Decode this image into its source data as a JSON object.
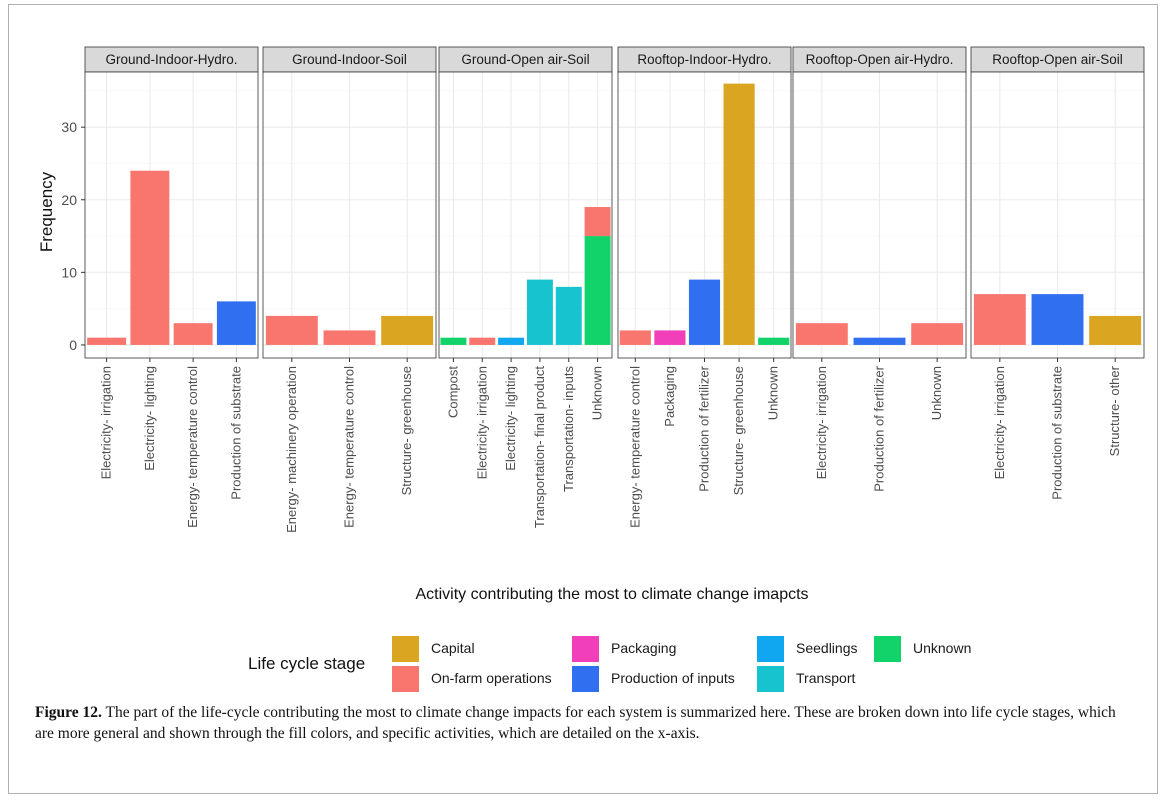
{
  "chart_data": {
    "type": "bar",
    "title": "",
    "xlabel": "Activity contributing the most to climate change imapcts",
    "ylabel": "Frequency",
    "ylim": [
      0,
      36
    ],
    "yticks": [
      0,
      10,
      20,
      30
    ],
    "grid": true,
    "legend_position": "bottom",
    "legend": {
      "title": "Life cycle stage",
      "entries": [
        {
          "name": "Capital",
          "color": "#DAA520"
        },
        {
          "name": "On-farm operations",
          "color": "#F8766D"
        },
        {
          "name": "Packaging",
          "color": "#F03FB8"
        },
        {
          "name": "Production of inputs",
          "color": "#2F6FF0"
        },
        {
          "name": "Seedlings",
          "color": "#10A6F0"
        },
        {
          "name": "Transport",
          "color": "#17C3CF"
        },
        {
          "name": "Unknown",
          "color": "#12D36A"
        }
      ]
    },
    "facets": [
      {
        "name": "Ground-Indoor-Hydro.",
        "categories": [
          {
            "label": "Electricity- irrigation",
            "segments": [
              {
                "stage": "On-farm operations",
                "value": 1
              }
            ]
          },
          {
            "label": "Electricity- lighting",
            "segments": [
              {
                "stage": "On-farm operations",
                "value": 24
              }
            ]
          },
          {
            "label": "Energy- temperature control",
            "segments": [
              {
                "stage": "On-farm operations",
                "value": 3
              }
            ]
          },
          {
            "label": "Production of substrate",
            "segments": [
              {
                "stage": "Production of inputs",
                "value": 6
              }
            ]
          }
        ]
      },
      {
        "name": "Ground-Indoor-Soil",
        "categories": [
          {
            "label": "Energy- machinery operation",
            "segments": [
              {
                "stage": "On-farm operations",
                "value": 4
              }
            ]
          },
          {
            "label": "Energy- temperature control",
            "segments": [
              {
                "stage": "On-farm operations",
                "value": 2
              }
            ]
          },
          {
            "label": "Structure- greenhouse",
            "segments": [
              {
                "stage": "Capital",
                "value": 4
              }
            ]
          }
        ]
      },
      {
        "name": "Ground-Open air-Soil",
        "categories": [
          {
            "label": "Compost",
            "segments": [
              {
                "stage": "Unknown",
                "value": 1
              }
            ]
          },
          {
            "label": "Electricity- irrigation",
            "segments": [
              {
                "stage": "On-farm operations",
                "value": 1
              }
            ]
          },
          {
            "label": "Electricity- lighting",
            "segments": [
              {
                "stage": "Seedlings",
                "value": 1
              }
            ]
          },
          {
            "label": "Transportation- final product",
            "segments": [
              {
                "stage": "Transport",
                "value": 9
              }
            ]
          },
          {
            "label": "Transportation- inputs",
            "segments": [
              {
                "stage": "Transport",
                "value": 8
              }
            ]
          },
          {
            "label": "Unknown",
            "segments": [
              {
                "stage": "Unknown",
                "value": 15
              },
              {
                "stage": "On-farm operations",
                "value": 4
              }
            ]
          }
        ]
      },
      {
        "name": "Rooftop-Indoor-Hydro.",
        "categories": [
          {
            "label": "Energy- temperature control",
            "segments": [
              {
                "stage": "On-farm operations",
                "value": 2
              }
            ]
          },
          {
            "label": "Packaging",
            "segments": [
              {
                "stage": "Packaging",
                "value": 2
              }
            ]
          },
          {
            "label": "Production of fertilizer",
            "segments": [
              {
                "stage": "Production of inputs",
                "value": 9
              }
            ]
          },
          {
            "label": "Structure- greenhouse",
            "segments": [
              {
                "stage": "Capital",
                "value": 36
              }
            ]
          },
          {
            "label": "Unknown",
            "segments": [
              {
                "stage": "Unknown",
                "value": 1
              }
            ]
          }
        ]
      },
      {
        "name": "Rooftop-Open air-Hydro.",
        "categories": [
          {
            "label": "Electricity- irrigation",
            "segments": [
              {
                "stage": "On-farm operations",
                "value": 3
              }
            ]
          },
          {
            "label": "Production of fertilizer",
            "segments": [
              {
                "stage": "Production of inputs",
                "value": 1
              }
            ]
          },
          {
            "label": "Unknown",
            "segments": [
              {
                "stage": "On-farm operations",
                "value": 3
              }
            ]
          }
        ]
      },
      {
        "name": "Rooftop-Open air-Soil",
        "categories": [
          {
            "label": "Electricity- irrigation",
            "segments": [
              {
                "stage": "On-farm operations",
                "value": 7
              }
            ]
          },
          {
            "label": "Production of substrate",
            "segments": [
              {
                "stage": "Production of inputs",
                "value": 7
              }
            ]
          },
          {
            "label": "Structure- other",
            "segments": [
              {
                "stage": "Capital",
                "value": 4
              }
            ]
          }
        ]
      }
    ]
  },
  "caption": {
    "label": "Figure 12.",
    "text": " The part of the life-cycle contributing the most to climate change impacts for each system is summarized here. These are broken down into life cycle stages, which are more general and shown through the fill colors, and specific activities, which are detailed on the x-axis."
  }
}
